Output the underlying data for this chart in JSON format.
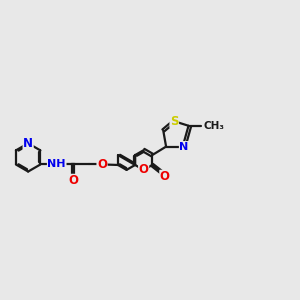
{
  "bg_color": "#e8e8e8",
  "bond_color": "#1a1a1a",
  "bond_width": 1.6,
  "atom_colors": {
    "N": "#0000ee",
    "O": "#ee0000",
    "S": "#cccc00",
    "H": "#4a8a8a",
    "C": "#1a1a1a"
  },
  "font_size_atom": 8.5,
  "font_size_small": 7.5,
  "figsize": [
    3.0,
    3.0
  ],
  "dpi": 100
}
